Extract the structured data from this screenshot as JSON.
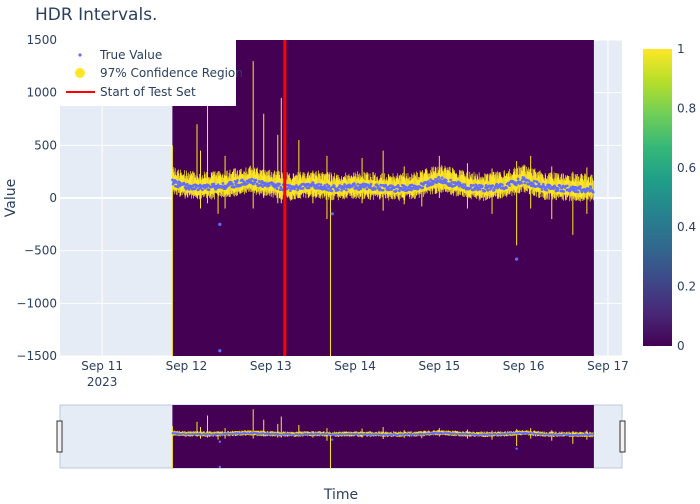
{
  "chart_data": {
    "type": "scatter",
    "title": "HDR Intervals.",
    "xlabel": "Time",
    "ylabel": "Value",
    "x_range": [
      "2023-09-10T12:00",
      "2023-09-17T04:00"
    ],
    "ylim": [
      -1500,
      1500
    ],
    "yticks": [
      -1500,
      -1000,
      -500,
      0,
      500,
      1000,
      1500
    ],
    "yticklabels": [
      "−1500",
      "−1000",
      "−500",
      "0",
      "500",
      "1000",
      "1500"
    ],
    "xticks": [
      "2023-09-11",
      "2023-09-12",
      "2023-09-13",
      "2023-09-14",
      "2023-09-15",
      "2023-09-16",
      "2023-09-17"
    ],
    "xticklabels": [
      {
        "line1": "Sep 11",
        "line2": "2023"
      },
      {
        "line1": "Sep 12",
        "line2": ""
      },
      {
        "line1": "Sep 13",
        "line2": ""
      },
      {
        "line1": "Sep 14",
        "line2": ""
      },
      {
        "line1": "Sep 15",
        "line2": ""
      },
      {
        "line1": "Sep 16",
        "line2": ""
      },
      {
        "line1": "Sep 17",
        "line2": ""
      }
    ],
    "heatmap_x_range": [
      "2023-09-11T20:00",
      "2023-09-16T20:00"
    ],
    "test_set_start": "2023-09-13T04:00",
    "legend": [
      {
        "name": "True Value",
        "marker": "dot",
        "color": "#636efa"
      },
      {
        "name": "97% Confidence Region",
        "marker": "circle",
        "color": "#fde725"
      },
      {
        "name": "Start of Test Set",
        "marker": "line",
        "color": "#ff0000"
      }
    ],
    "legend_position": "top-left",
    "colorbar": {
      "min": 0,
      "max": 1,
      "ticks": [
        0,
        0.2,
        0.4,
        0.6,
        0.8,
        1
      ],
      "ticklabels": [
        "0",
        "0.2",
        "0.4",
        "0.6",
        "0.8",
        "1"
      ],
      "colorscale": "viridis"
    },
    "background_fill": "#440154",
    "band_color": "#fde725",
    "point_color": "#636efa",
    "test_line_color": "#ff0000",
    "true_value_baseline": [
      {
        "x": "2023-09-11T20:00",
        "y": 150
      },
      {
        "x": "2023-09-12T00:00",
        "y": 110
      },
      {
        "x": "2023-09-12T06:00",
        "y": 100
      },
      {
        "x": "2023-09-12T12:00",
        "y": 120
      },
      {
        "x": "2023-09-12T18:00",
        "y": 160
      },
      {
        "x": "2023-09-13T00:00",
        "y": 120
      },
      {
        "x": "2023-09-13T06:00",
        "y": 90
      },
      {
        "x": "2023-09-13T12:00",
        "y": 120
      },
      {
        "x": "2023-09-13T18:00",
        "y": 90
      },
      {
        "x": "2023-09-14T00:00",
        "y": 110
      },
      {
        "x": "2023-09-14T06:00",
        "y": 100
      },
      {
        "x": "2023-09-14T12:00",
        "y": 90
      },
      {
        "x": "2023-09-14T18:00",
        "y": 110
      },
      {
        "x": "2023-09-15T00:00",
        "y": 170
      },
      {
        "x": "2023-09-15T06:00",
        "y": 120
      },
      {
        "x": "2023-09-15T12:00",
        "y": 90
      },
      {
        "x": "2023-09-15T18:00",
        "y": 110
      },
      {
        "x": "2023-09-16T00:00",
        "y": 170
      },
      {
        "x": "2023-09-16T06:00",
        "y": 100
      },
      {
        "x": "2023-09-16T12:00",
        "y": 90
      },
      {
        "x": "2023-09-16T20:00",
        "y": 80
      }
    ],
    "band_spikes": [
      {
        "x": "2023-09-11T20:00",
        "high": 500,
        "low": -1500
      },
      {
        "x": "2023-09-12T03:00",
        "high": 700,
        "low": 0
      },
      {
        "x": "2023-09-12T04:00",
        "high": 450,
        "low": -100
      },
      {
        "x": "2023-09-12T06:00",
        "high": 1000,
        "low": -50
      },
      {
        "x": "2023-09-12T09:00",
        "high": 250,
        "low": -150
      },
      {
        "x": "2023-09-12T11:00",
        "high": 400,
        "low": -100
      },
      {
        "x": "2023-09-12T19:00",
        "high": 1300,
        "low": -100
      },
      {
        "x": "2023-09-12T22:00",
        "high": 800,
        "low": 0
      },
      {
        "x": "2023-09-13T02:00",
        "high": 600,
        "low": -50
      },
      {
        "x": "2023-09-13T03:00",
        "high": 950,
        "low": -50
      },
      {
        "x": "2023-09-13T08:00",
        "high": 550,
        "low": 0
      },
      {
        "x": "2023-09-13T12:00",
        "high": 250,
        "low": -50
      },
      {
        "x": "2023-09-13T16:00",
        "high": 400,
        "low": -200
      },
      {
        "x": "2023-09-13T17:00",
        "high": 100,
        "low": -1500
      },
      {
        "x": "2023-09-14T02:00",
        "high": 380,
        "low": -50
      },
      {
        "x": "2023-09-14T08:00",
        "high": 450,
        "low": -120
      },
      {
        "x": "2023-09-14T14:00",
        "high": 300,
        "low": -60
      },
      {
        "x": "2023-09-14T19:00",
        "high": 250,
        "low": -80
      },
      {
        "x": "2023-09-15T00:00",
        "high": 400,
        "low": 0
      },
      {
        "x": "2023-09-15T08:00",
        "high": 330,
        "low": -100
      },
      {
        "x": "2023-09-15T15:00",
        "high": 280,
        "low": -150
      },
      {
        "x": "2023-09-15T22:00",
        "high": 350,
        "low": -450
      },
      {
        "x": "2023-09-16T02:00",
        "high": 400,
        "low": -100
      },
      {
        "x": "2023-09-16T08:00",
        "high": 300,
        "low": -200
      },
      {
        "x": "2023-09-16T14:00",
        "high": 250,
        "low": -350
      },
      {
        "x": "2023-09-16T18:00",
        "high": 290,
        "low": -150
      }
    ],
    "true_value_outliers": [
      {
        "x": "2023-09-12T09:30",
        "y": -250
      },
      {
        "x": "2023-09-12T09:30",
        "y": -1450
      },
      {
        "x": "2023-09-13T17:30",
        "y": -150
      },
      {
        "x": "2023-09-15T22:00",
        "y": -580
      }
    ]
  },
  "rangeslider": {
    "visible": true
  }
}
